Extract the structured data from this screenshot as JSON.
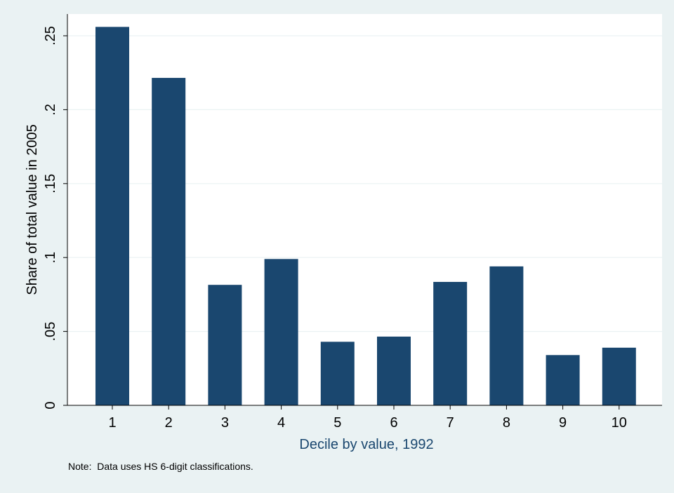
{
  "chart_data": {
    "type": "bar",
    "categories": [
      "1",
      "2",
      "3",
      "4",
      "5",
      "6",
      "7",
      "8",
      "9",
      "10"
    ],
    "values": [
      0.256,
      0.2215,
      0.0815,
      0.099,
      0.043,
      0.0465,
      0.0835,
      0.094,
      0.034,
      0.039
    ],
    "xlabel": "Decile by value, 1992",
    "ylabel": "Share of total value in 2005",
    "ylim": [
      0,
      0.27
    ],
    "yticks": [
      0,
      0.05,
      0.1,
      0.15,
      0.2,
      0.25
    ],
    "ytick_labels": [
      "0",
      ".05",
      ".1",
      ".15",
      ".2",
      ".25"
    ],
    "grid": true,
    "bar_color": "#1a476f",
    "note": "Note:  Data uses HS 6-digit classifications."
  }
}
